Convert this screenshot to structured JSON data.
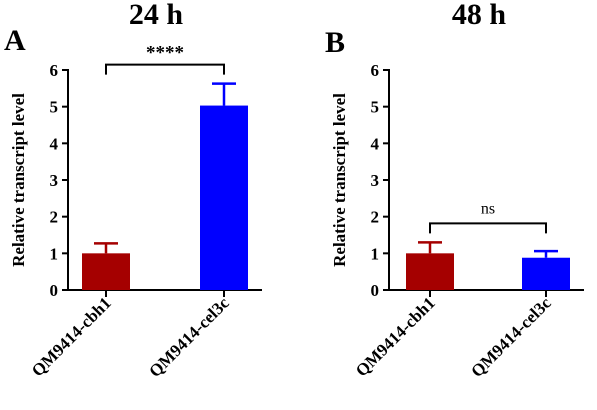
{
  "chart_data": [
    {
      "type": "bar",
      "panel": "A",
      "title": "24 h",
      "ylabel": "Relative transcript level",
      "ylim": [
        0,
        6
      ],
      "yticks": [
        "0",
        "1",
        "2",
        "3",
        "4",
        "5",
        "6"
      ],
      "categories": [
        "QM9414-cbh1",
        "QM9414-cel3c"
      ],
      "values": [
        1.0,
        5.03
      ],
      "errors": [
        0.27,
        0.6
      ],
      "colors": [
        "#a50000",
        "#0000ff"
      ],
      "significance": "****"
    },
    {
      "type": "bar",
      "panel": "B",
      "title": "48 h",
      "ylabel": "Relative transcript level",
      "ylim": [
        0,
        6
      ],
      "yticks": [
        "0",
        "1",
        "2",
        "3",
        "4",
        "5",
        "6"
      ],
      "categories": [
        "QM9414-cbh1",
        "QM9414-cel3c"
      ],
      "values": [
        1.0,
        0.88
      ],
      "errors": [
        0.3,
        0.18
      ],
      "colors": [
        "#a50000",
        "#0000ff"
      ],
      "significance": "ns"
    }
  ]
}
